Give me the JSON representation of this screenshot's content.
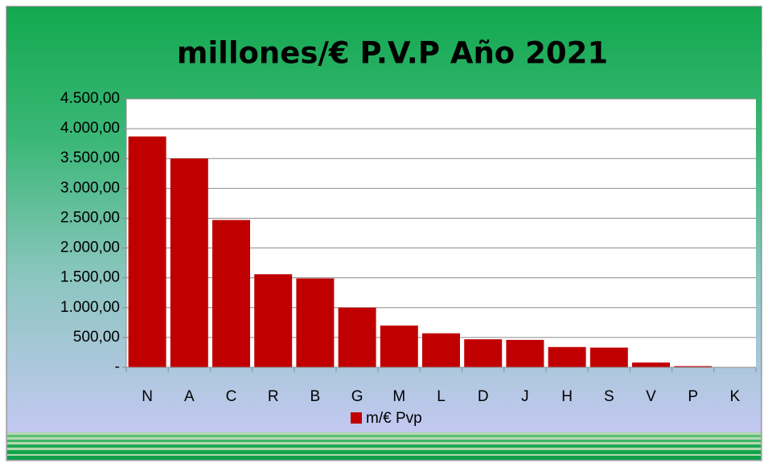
{
  "chart_data": {
    "type": "bar",
    "title": "millones/€ P.V.P Año 2021",
    "categories": [
      "N",
      "A",
      "C",
      "R",
      "B",
      "G",
      "M",
      "L",
      "D",
      "J",
      "H",
      "S",
      "V",
      "P",
      "K"
    ],
    "series": [
      {
        "name": "m/€ Pvp",
        "color": "#c00000",
        "values": [
          3870,
          3500,
          2470,
          1560,
          1490,
          1000,
          700,
          570,
          470,
          460,
          340,
          330,
          80,
          20,
          5
        ]
      }
    ],
    "ylim": [
      0,
      4500
    ],
    "yticks": [
      {
        "value": 0,
        "label": "-"
      },
      {
        "value": 500,
        "label": "500,00"
      },
      {
        "value": 1000,
        "label": "1.000,00"
      },
      {
        "value": 1500,
        "label": "1.500,00"
      },
      {
        "value": 2000,
        "label": "2.000,00"
      },
      {
        "value": 2500,
        "label": "2.500,00"
      },
      {
        "value": 3000,
        "label": "3.000,00"
      },
      {
        "value": 3500,
        "label": "3.500,00"
      },
      {
        "value": 4000,
        "label": "4.000,00"
      },
      {
        "value": 4500,
        "label": "4.500,00"
      }
    ],
    "grid": true,
    "legend": "bottom"
  }
}
